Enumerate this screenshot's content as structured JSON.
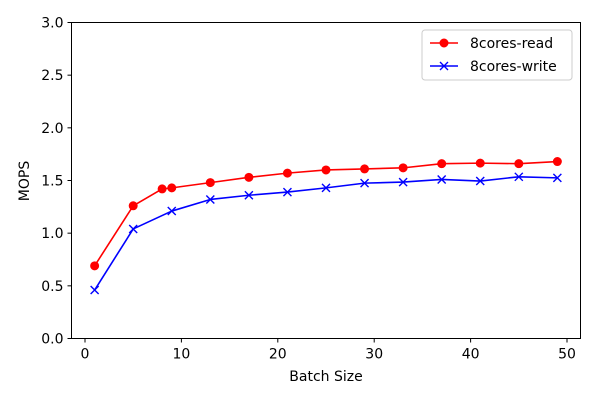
{
  "chart_data": {
    "type": "line",
    "xlabel": "Batch Size",
    "ylabel": "MOPS",
    "xlim": [
      -1.4,
      51.4
    ],
    "ylim": [
      0.0,
      3.0
    ],
    "xticks": [
      0,
      10,
      20,
      30,
      40,
      50
    ],
    "xtick_labels": [
      "0",
      "10",
      "20",
      "30",
      "40",
      "50"
    ],
    "yticks": [
      0.0,
      0.5,
      1.0,
      1.5,
      2.0,
      2.5,
      3.0
    ],
    "ytick_labels": [
      "0.0",
      "0.5",
      "1.0",
      "1.5",
      "2.0",
      "2.5",
      "3.0"
    ],
    "grid": false,
    "legend_position": "top-right",
    "series": [
      {
        "name": "8cores-read",
        "color": "#ff0000",
        "marker": "circle",
        "x": [
          1,
          5,
          8,
          9,
          13,
          17,
          21,
          25,
          29,
          33,
          37,
          41,
          45,
          49
        ],
        "y": [
          0.69,
          1.26,
          1.42,
          1.43,
          1.48,
          1.53,
          1.57,
          1.6,
          1.61,
          1.62,
          1.66,
          1.665,
          1.66,
          1.68
        ]
      },
      {
        "name": "8cores-write",
        "color": "#0000ff",
        "marker": "x",
        "x": [
          1,
          5,
          9,
          13,
          17,
          21,
          25,
          29,
          33,
          37,
          41,
          45,
          49
        ],
        "y": [
          0.46,
          1.04,
          1.21,
          1.32,
          1.36,
          1.39,
          1.43,
          1.475,
          1.485,
          1.51,
          1.495,
          1.535,
          1.525
        ]
      }
    ]
  }
}
